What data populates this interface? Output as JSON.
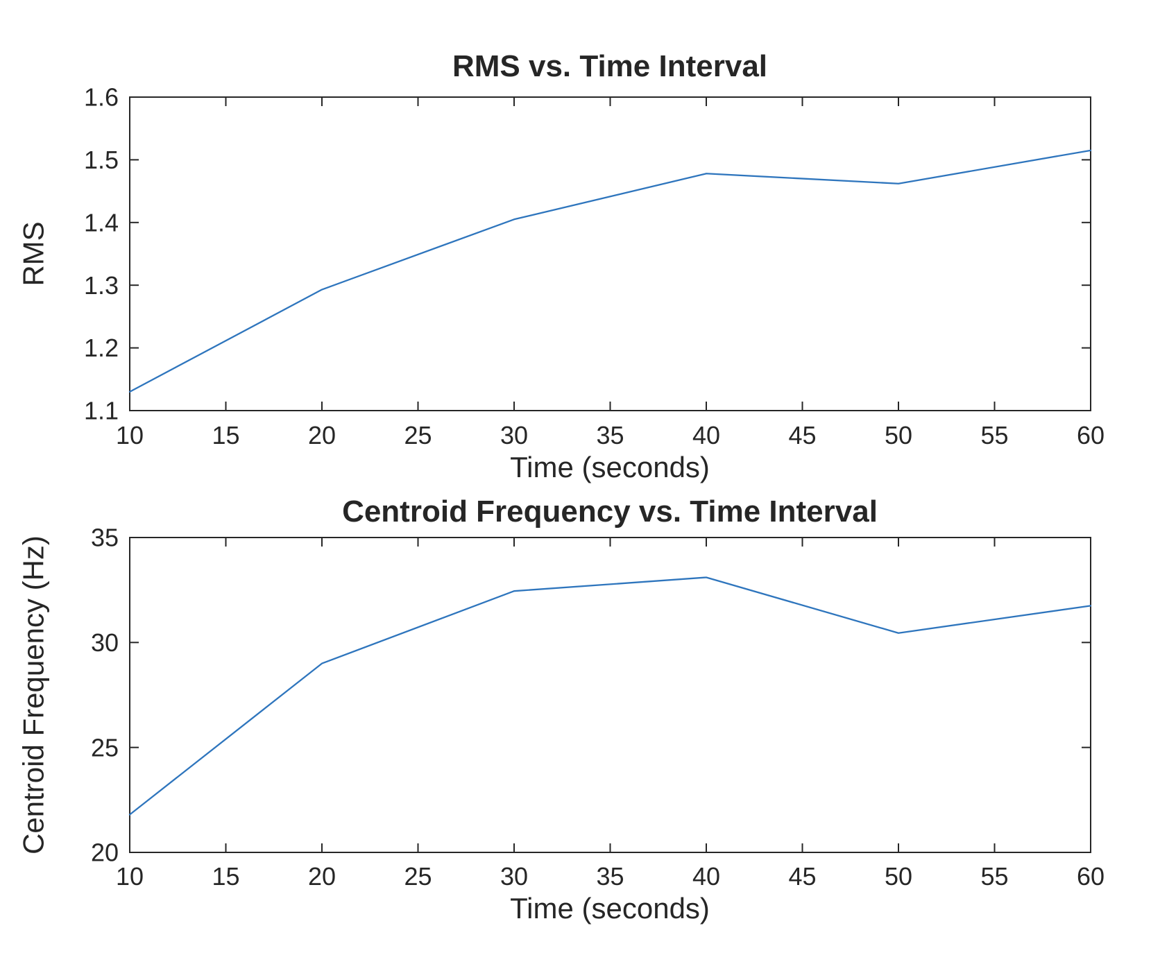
{
  "figure": {
    "background": "#ffffff",
    "axis_color": "#262626",
    "text_color": "#262626",
    "line_color": "#2e75bd"
  },
  "chart_data": [
    {
      "type": "line",
      "title": "RMS vs. Time Interval",
      "xlabel": "Time (seconds)",
      "ylabel": "RMS",
      "x": [
        10,
        20,
        30,
        40,
        50,
        60
      ],
      "y": [
        1.13,
        1.293,
        1.405,
        1.478,
        1.462,
        1.515
      ],
      "xlim": [
        10,
        60
      ],
      "ylim": [
        1.1,
        1.6
      ],
      "xticks": [
        10,
        15,
        20,
        25,
        30,
        35,
        40,
        45,
        50,
        55,
        60
      ],
      "xtick_labels": [
        "10",
        "15",
        "20",
        "25",
        "30",
        "35",
        "40",
        "45",
        "50",
        "55",
        "60"
      ],
      "yticks": [
        1.1,
        1.2,
        1.3,
        1.4,
        1.5,
        1.6
      ],
      "ytick_labels": [
        "1.1",
        "1.2",
        "1.3",
        "1.4",
        "1.5",
        "1.6"
      ],
      "grid": false,
      "legend": "none",
      "box": "on"
    },
    {
      "type": "line",
      "title": "Centroid Frequency vs. Time Interval",
      "xlabel": "Time (seconds)",
      "ylabel": "Centroid Frequency (Hz)",
      "x": [
        10,
        20,
        30,
        40,
        50,
        60
      ],
      "y": [
        21.8,
        29.0,
        32.45,
        33.1,
        30.45,
        31.75
      ],
      "xlim": [
        10,
        60
      ],
      "ylim": [
        20,
        35
      ],
      "xticks": [
        10,
        15,
        20,
        25,
        30,
        35,
        40,
        45,
        50,
        55,
        60
      ],
      "xtick_labels": [
        "10",
        "15",
        "20",
        "25",
        "30",
        "35",
        "40",
        "45",
        "50",
        "55",
        "60"
      ],
      "yticks": [
        20,
        25,
        30,
        35
      ],
      "ytick_labels": [
        "20",
        "25",
        "30",
        "35"
      ],
      "grid": false,
      "legend": "none",
      "box": "on"
    }
  ]
}
